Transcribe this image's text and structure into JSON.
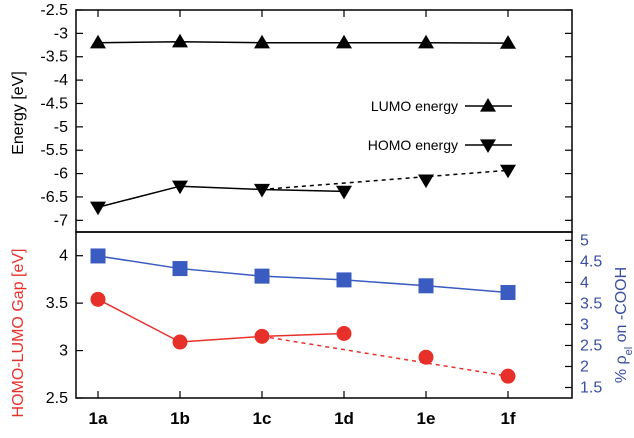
{
  "chart_data": [
    {
      "type": "line",
      "panel": "top",
      "ylabel": "Energy [eV]",
      "ylim": [
        -7.25,
        -2.5
      ],
      "yticks": [
        "-2.5",
        "-3",
        "-3.5",
        "-4",
        "-4.5",
        "-5",
        "-5.5",
        "-6",
        "-6.5",
        "-7"
      ],
      "categories": [
        "1a",
        "1b",
        "1c",
        "1d",
        "1e",
        "1f"
      ],
      "legend_position": "right",
      "series": [
        {
          "name": "LUMO energy",
          "marker": "triangle-up",
          "color": "#000000",
          "values": [
            -3.2,
            -3.18,
            -3.2,
            -3.2,
            -3.2,
            -3.21
          ],
          "solid_segments": [
            [
              0,
              5
            ]
          ],
          "dashed_segments": []
        },
        {
          "name": "HOMO energy",
          "marker": "triangle-down",
          "color": "#000000",
          "values": [
            -6.72,
            -6.27,
            -6.34,
            -6.38,
            -6.14,
            -5.93
          ],
          "solid_segments": [
            [
              0,
              3
            ]
          ],
          "dashed_segments": [
            [
              2,
              5
            ]
          ]
        }
      ]
    },
    {
      "type": "line",
      "panel": "bottom",
      "ylabel": "HOMO-LUMO Gap [eV]",
      "ylabel_color": "#e8302b",
      "ylim": [
        2.5,
        4.25
      ],
      "yticks": [
        "2.5",
        "3",
        "3.5",
        "4"
      ],
      "y2label": "% ρ",
      "y2label_subscript": "el",
      "y2label_rest": " on -COOH",
      "y2label_color": "#3a4fa0",
      "y2lim": [
        1.25,
        5.2
      ],
      "y2ticks": [
        "1.5",
        "2",
        "2.5",
        "3",
        "3.5",
        "4",
        "4.5",
        "5"
      ],
      "categories": [
        "1a",
        "1b",
        "1c",
        "1d",
        "1e",
        "1f"
      ],
      "series": [
        {
          "marker": "circle",
          "color": "#e8302b",
          "axis": "left",
          "values": [
            3.54,
            3.09,
            3.15,
            3.18,
            2.93,
            2.73
          ],
          "solid_segments": [
            [
              0,
              3
            ]
          ],
          "dashed_segments": [
            [
              2,
              5
            ]
          ]
        },
        {
          "marker": "square",
          "color": "#3a5bbf",
          "axis": "right",
          "values": [
            4.63,
            4.33,
            4.15,
            4.06,
            3.92,
            3.76
          ],
          "solid_segments": [
            [
              0,
              5
            ]
          ],
          "dashed_segments": []
        }
      ]
    }
  ]
}
